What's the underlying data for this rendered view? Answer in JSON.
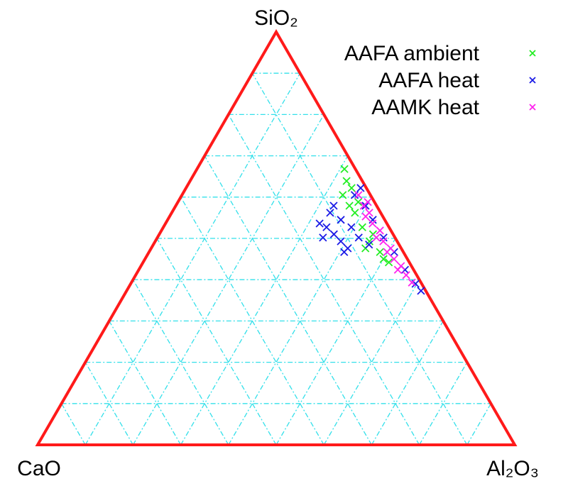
{
  "chart_data": {
    "type": "ternary",
    "axes": {
      "top": "SiO₂",
      "left": "CaO",
      "right": "Al₂O₃"
    },
    "lim": [
      0,
      100
    ],
    "ticks": [
      10,
      20,
      30,
      40,
      50,
      60,
      70,
      80,
      90
    ],
    "grid": true,
    "grid_color": "#33e0ea",
    "frame_color": "#ff1a1a",
    "legend": "top-right",
    "series": [
      {
        "name": "AAFA ambient",
        "color": "#22ee22",
        "marker": "x",
        "top": [
          66.8,
          63.9,
          60.5,
          57.9,
          56.2,
          52.7,
          49.3,
          46.7,
          44.2,
          47.6,
          62.2,
          58.8,
          51.0,
          45.0
        ],
        "right": [
          30.9,
          32.8,
          33.7,
          36.4,
          38.4,
          41.7,
          44.9,
          48.4,
          51.5,
          44.9,
          34.7,
          37.8,
          44.8,
          50.0
        ],
        "left": [
          2.3,
          3.3,
          5.8,
          5.7,
          5.4,
          5.6,
          5.8,
          4.9,
          4.3,
          7.5,
          3.1,
          3.4,
          4.2,
          5.0
        ]
      },
      {
        "name": "AAFA heat",
        "color": "#1a1ae6",
        "marker": "x",
        "top": [
          53.6,
          52.7,
          51.0,
          49.3,
          47.6,
          56.2,
          54.5,
          52.7,
          50.2,
          50.2,
          60.5,
          62.2,
          57.9,
          54.5,
          50.2,
          46.7,
          42.4,
          39.0,
          37.3,
          48.5,
          57.9,
          46.7
        ],
        "right": [
          32.3,
          34.2,
          36.6,
          38.9,
          41.2,
          33.2,
          36.3,
          39.4,
          34.7,
          42.2,
          36.2,
          36.6,
          39.8,
          43.0,
          47.4,
          51.4,
          55.8,
          59.7,
          61.7,
          45.2,
          33.1,
          40.9
        ],
        "left": [
          14.1,
          13.1,
          12.4,
          11.8,
          11.2,
          10.6,
          9.2,
          7.9,
          15.1,
          7.6,
          3.3,
          1.2,
          2.3,
          2.5,
          2.4,
          1.9,
          1.8,
          1.3,
          1.0,
          6.3,
          9.0,
          12.4
        ]
      },
      {
        "name": "AAMK heat",
        "color": "#ff22ee",
        "marker": "x",
        "top": [
          60.5,
          57.9,
          56.2,
          53.6,
          51.9,
          49.3,
          47.6,
          45.0,
          43.3,
          41.1,
          39.3,
          55.3,
          50.2,
          46.7,
          42.4,
          58.8
        ],
        "right": [
          37.0,
          39.4,
          41.4,
          43.4,
          45.8,
          47.8,
          50.2,
          52.2,
          54.5,
          56.7,
          58.8,
          41.1,
          45.9,
          49.9,
          54.3,
          39.8
        ],
        "left": [
          2.5,
          2.7,
          2.4,
          3.0,
          2.3,
          2.9,
          2.2,
          2.8,
          2.2,
          2.2,
          1.9,
          3.6,
          3.9,
          3.4,
          3.3,
          1.4
        ]
      }
    ]
  }
}
